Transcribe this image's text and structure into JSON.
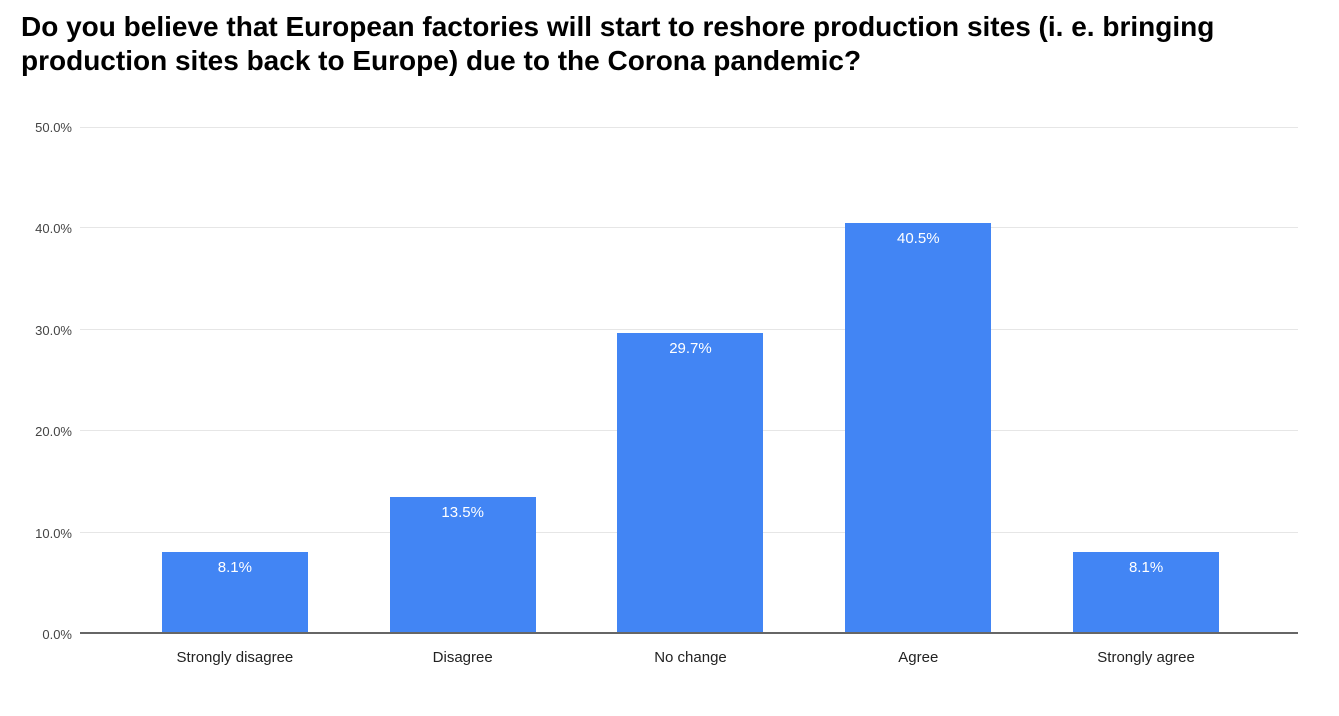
{
  "colors": {
    "background": "#ffffff",
    "title": "#000000",
    "bar": "#4285f4",
    "bar_label": "#ffffff",
    "gridline": "#e6e6e6",
    "axis_line": "#666666",
    "y_tick": "#444444",
    "x_tick": "#222222"
  },
  "chart_data": {
    "type": "bar",
    "title": "Do you believe that European factories will start to reshore production sites (i. e. bringing production sites back to Europe) due to the Corona pandemic?",
    "categories": [
      "Strongly disagree",
      "Disagree",
      "No change",
      "Agree",
      "Strongly agree"
    ],
    "values": [
      8.1,
      13.5,
      29.7,
      40.5,
      8.1
    ],
    "value_labels": [
      "8.1%",
      "13.5%",
      "29.7%",
      "40.5%",
      "8.1%"
    ],
    "y_ticks": [
      "0.0%",
      "10.0%",
      "20.0%",
      "30.0%",
      "40.0%",
      "50.0%"
    ],
    "ylim": [
      0,
      50
    ],
    "xlabel": "",
    "ylabel": "",
    "grid": true,
    "legend": "none"
  }
}
